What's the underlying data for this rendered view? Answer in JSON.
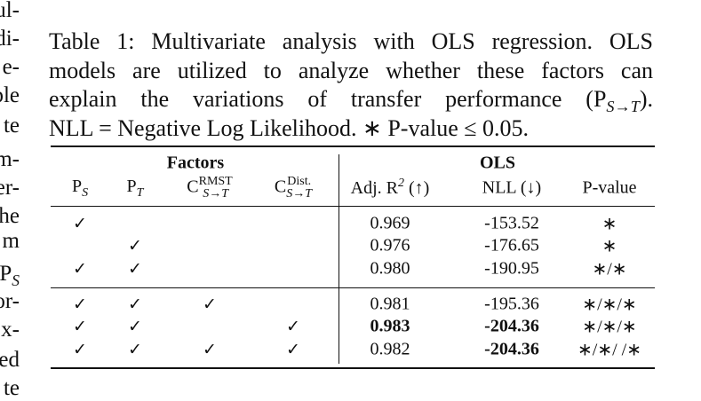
{
  "margin_fragments": [
    "ul-",
    "di-",
    "e-",
    "ple",
    "te",
    "m-",
    "er-",
    "he",
    "m",
    {
      "base": "P",
      "sub": "S"
    },
    "or-",
    "x-",
    "ed",
    "te"
  ],
  "caption": {
    "lines": [
      "Table 1: Multivariate analysis with OLS regression. OLS",
      "models are utilized to analyze whether these factors can",
      "explain the variations of transfer performance (P",
      "NLL = Negative Log Likelihood. ∗ P-value ≤ 0.05."
    ],
    "math": {
      "base": "",
      "sub": "S→T"
    },
    "math_close": ")."
  },
  "table": {
    "groups": [
      "Factors",
      "OLS"
    ],
    "columns": [
      {
        "base": "P",
        "sub": "S"
      },
      {
        "base": "P",
        "sub": "T"
      },
      {
        "base": "C",
        "sup": "RMST",
        "sub": "S→T"
      },
      {
        "base": "C",
        "sup": "Dist.",
        "sub": "S→T"
      },
      {
        "base": "Adj. R",
        "sup": "2",
        "after": " (↑)"
      },
      {
        "base": "NLL (↓)"
      },
      {
        "base": "P-value"
      }
    ],
    "blocks": [
      [
        [
          "✓",
          null,
          null,
          null,
          "0.969",
          "-153.52",
          "∗"
        ],
        [
          null,
          "✓",
          null,
          null,
          "0.976",
          "-176.65",
          "∗"
        ],
        [
          "✓",
          "✓",
          null,
          null,
          "0.980",
          "-190.95",
          "∗/∗"
        ]
      ],
      [
        [
          "✓",
          "✓",
          "✓",
          null,
          "0.981",
          "-195.36",
          "∗/∗/∗"
        ],
        [
          "✓",
          "✓",
          null,
          "✓",
          "0.983",
          "-204.36",
          "∗/∗/∗"
        ],
        [
          "✓",
          "✓",
          "✓",
          "✓",
          "0.982",
          "-204.36",
          "∗/∗/ /∗"
        ]
      ]
    ],
    "bold": [
      [
        1,
        1,
        4
      ],
      [
        1,
        1,
        5
      ],
      [
        1,
        2,
        5
      ]
    ]
  }
}
